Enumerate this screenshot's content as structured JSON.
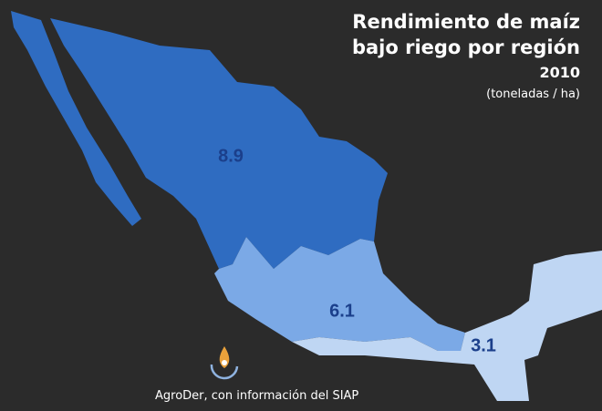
{
  "title": "Rendimiento de maíz bajo riego por región",
  "year": "2010",
  "units": "(toneladas / ha)",
  "regions": [
    {
      "value": 8.9,
      "color": "#2f6cc1"
    },
    {
      "value": 6.1,
      "color": "#7ba9e6"
    },
    {
      "value": 3.1,
      "color": "#bfd6f3"
    }
  ],
  "source": "AgroDer, con información del SIAP"
}
